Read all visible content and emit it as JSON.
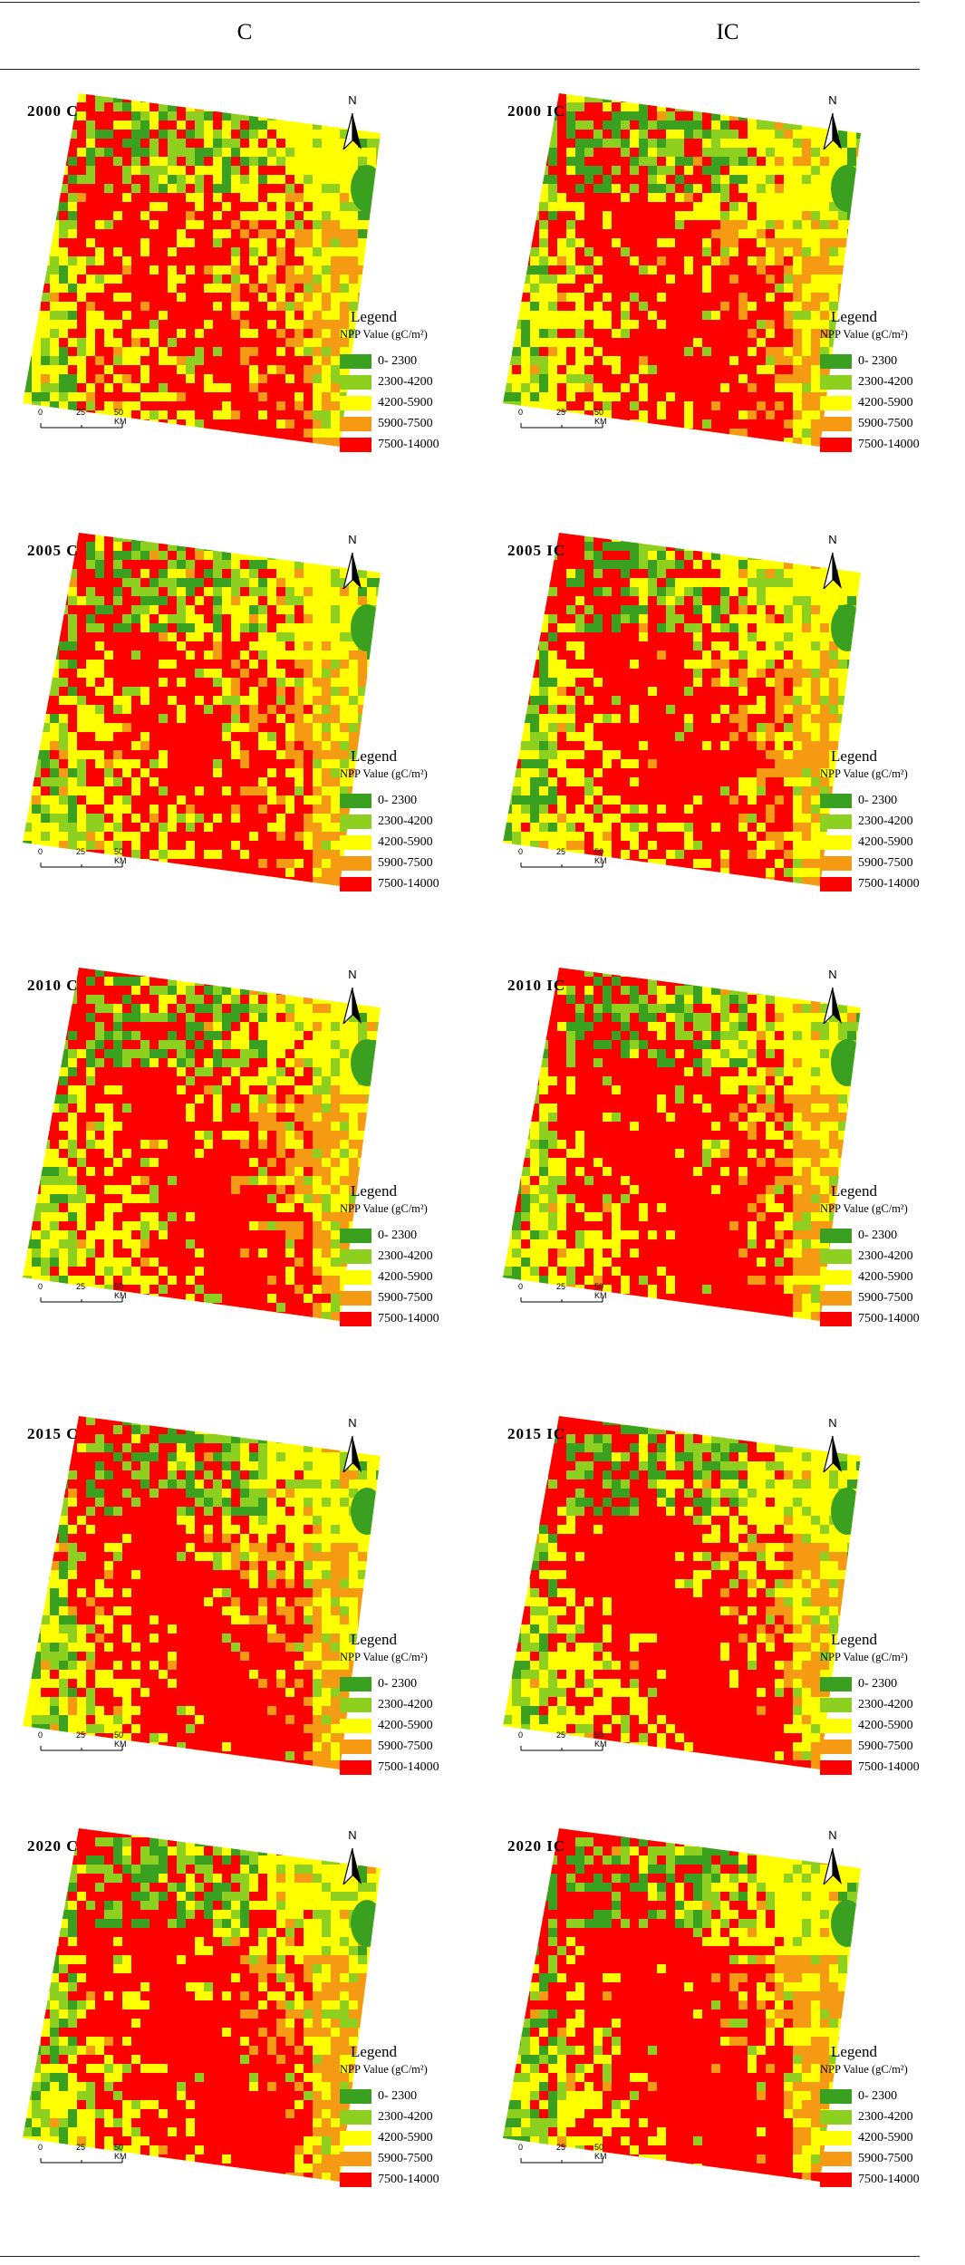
{
  "columns": {
    "left": "C",
    "right": "IC"
  },
  "legend": {
    "title": "Legend",
    "subtitle": "NPP Value (gC/m²)",
    "items": [
      {
        "label": "0- 2300",
        "color": "#3aa020"
      },
      {
        "label": "2300-4200",
        "color": "#8ed020"
      },
      {
        "label": "4200-5900",
        "color": "#ffff00"
      },
      {
        "label": "5900-7500",
        "color": "#f59a12"
      },
      {
        "label": "7500-14000",
        "color": "#ff0000"
      }
    ]
  },
  "scale_bar": {
    "ticks": [
      "0",
      "25",
      "50 KM"
    ]
  },
  "north_arrow": "N",
  "panels": [
    {
      "id": "2000-c",
      "label": "2000 C",
      "red_share": 0.38
    },
    {
      "id": "2000-ic",
      "label": "2000 IC",
      "red_share": 0.44
    },
    {
      "id": "2005-c",
      "label": "2005 C",
      "red_share": 0.4
    },
    {
      "id": "2005-ic",
      "label": "2005 IC",
      "red_share": 0.46
    },
    {
      "id": "2010-c",
      "label": "2010 C",
      "red_share": 0.48
    },
    {
      "id": "2010-ic",
      "label": "2010 IC",
      "red_share": 0.54
    },
    {
      "id": "2015-c",
      "label": "2015 C",
      "red_share": 0.55
    },
    {
      "id": "2015-ic",
      "label": "2015 IC",
      "red_share": 0.58
    },
    {
      "id": "2020-c",
      "label": "2020 C",
      "red_share": 0.56
    },
    {
      "id": "2020-ic",
      "label": "2020 IC",
      "red_share": 0.6
    }
  ]
}
